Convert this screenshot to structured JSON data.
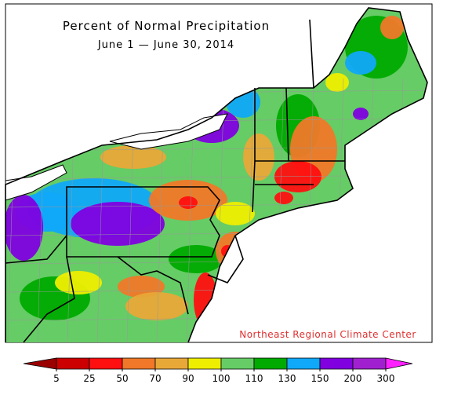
{
  "title": "Percent of Normal Precipitation",
  "subtitle": "June 1 — June 30, 2014",
  "credit": "Northeast Regional Climate Center",
  "legend": {
    "ticks": [
      5,
      25,
      50,
      70,
      90,
      100,
      110,
      130,
      150,
      200,
      300
    ],
    "colors": [
      "#9b0000",
      "#cc0000",
      "#ff1010",
      "#f07828",
      "#e8a838",
      "#eeee00",
      "#66cc66",
      "#00aa00",
      "#10a8f8",
      "#8000e0",
      "#a020d0",
      "#ff20ff"
    ]
  }
}
